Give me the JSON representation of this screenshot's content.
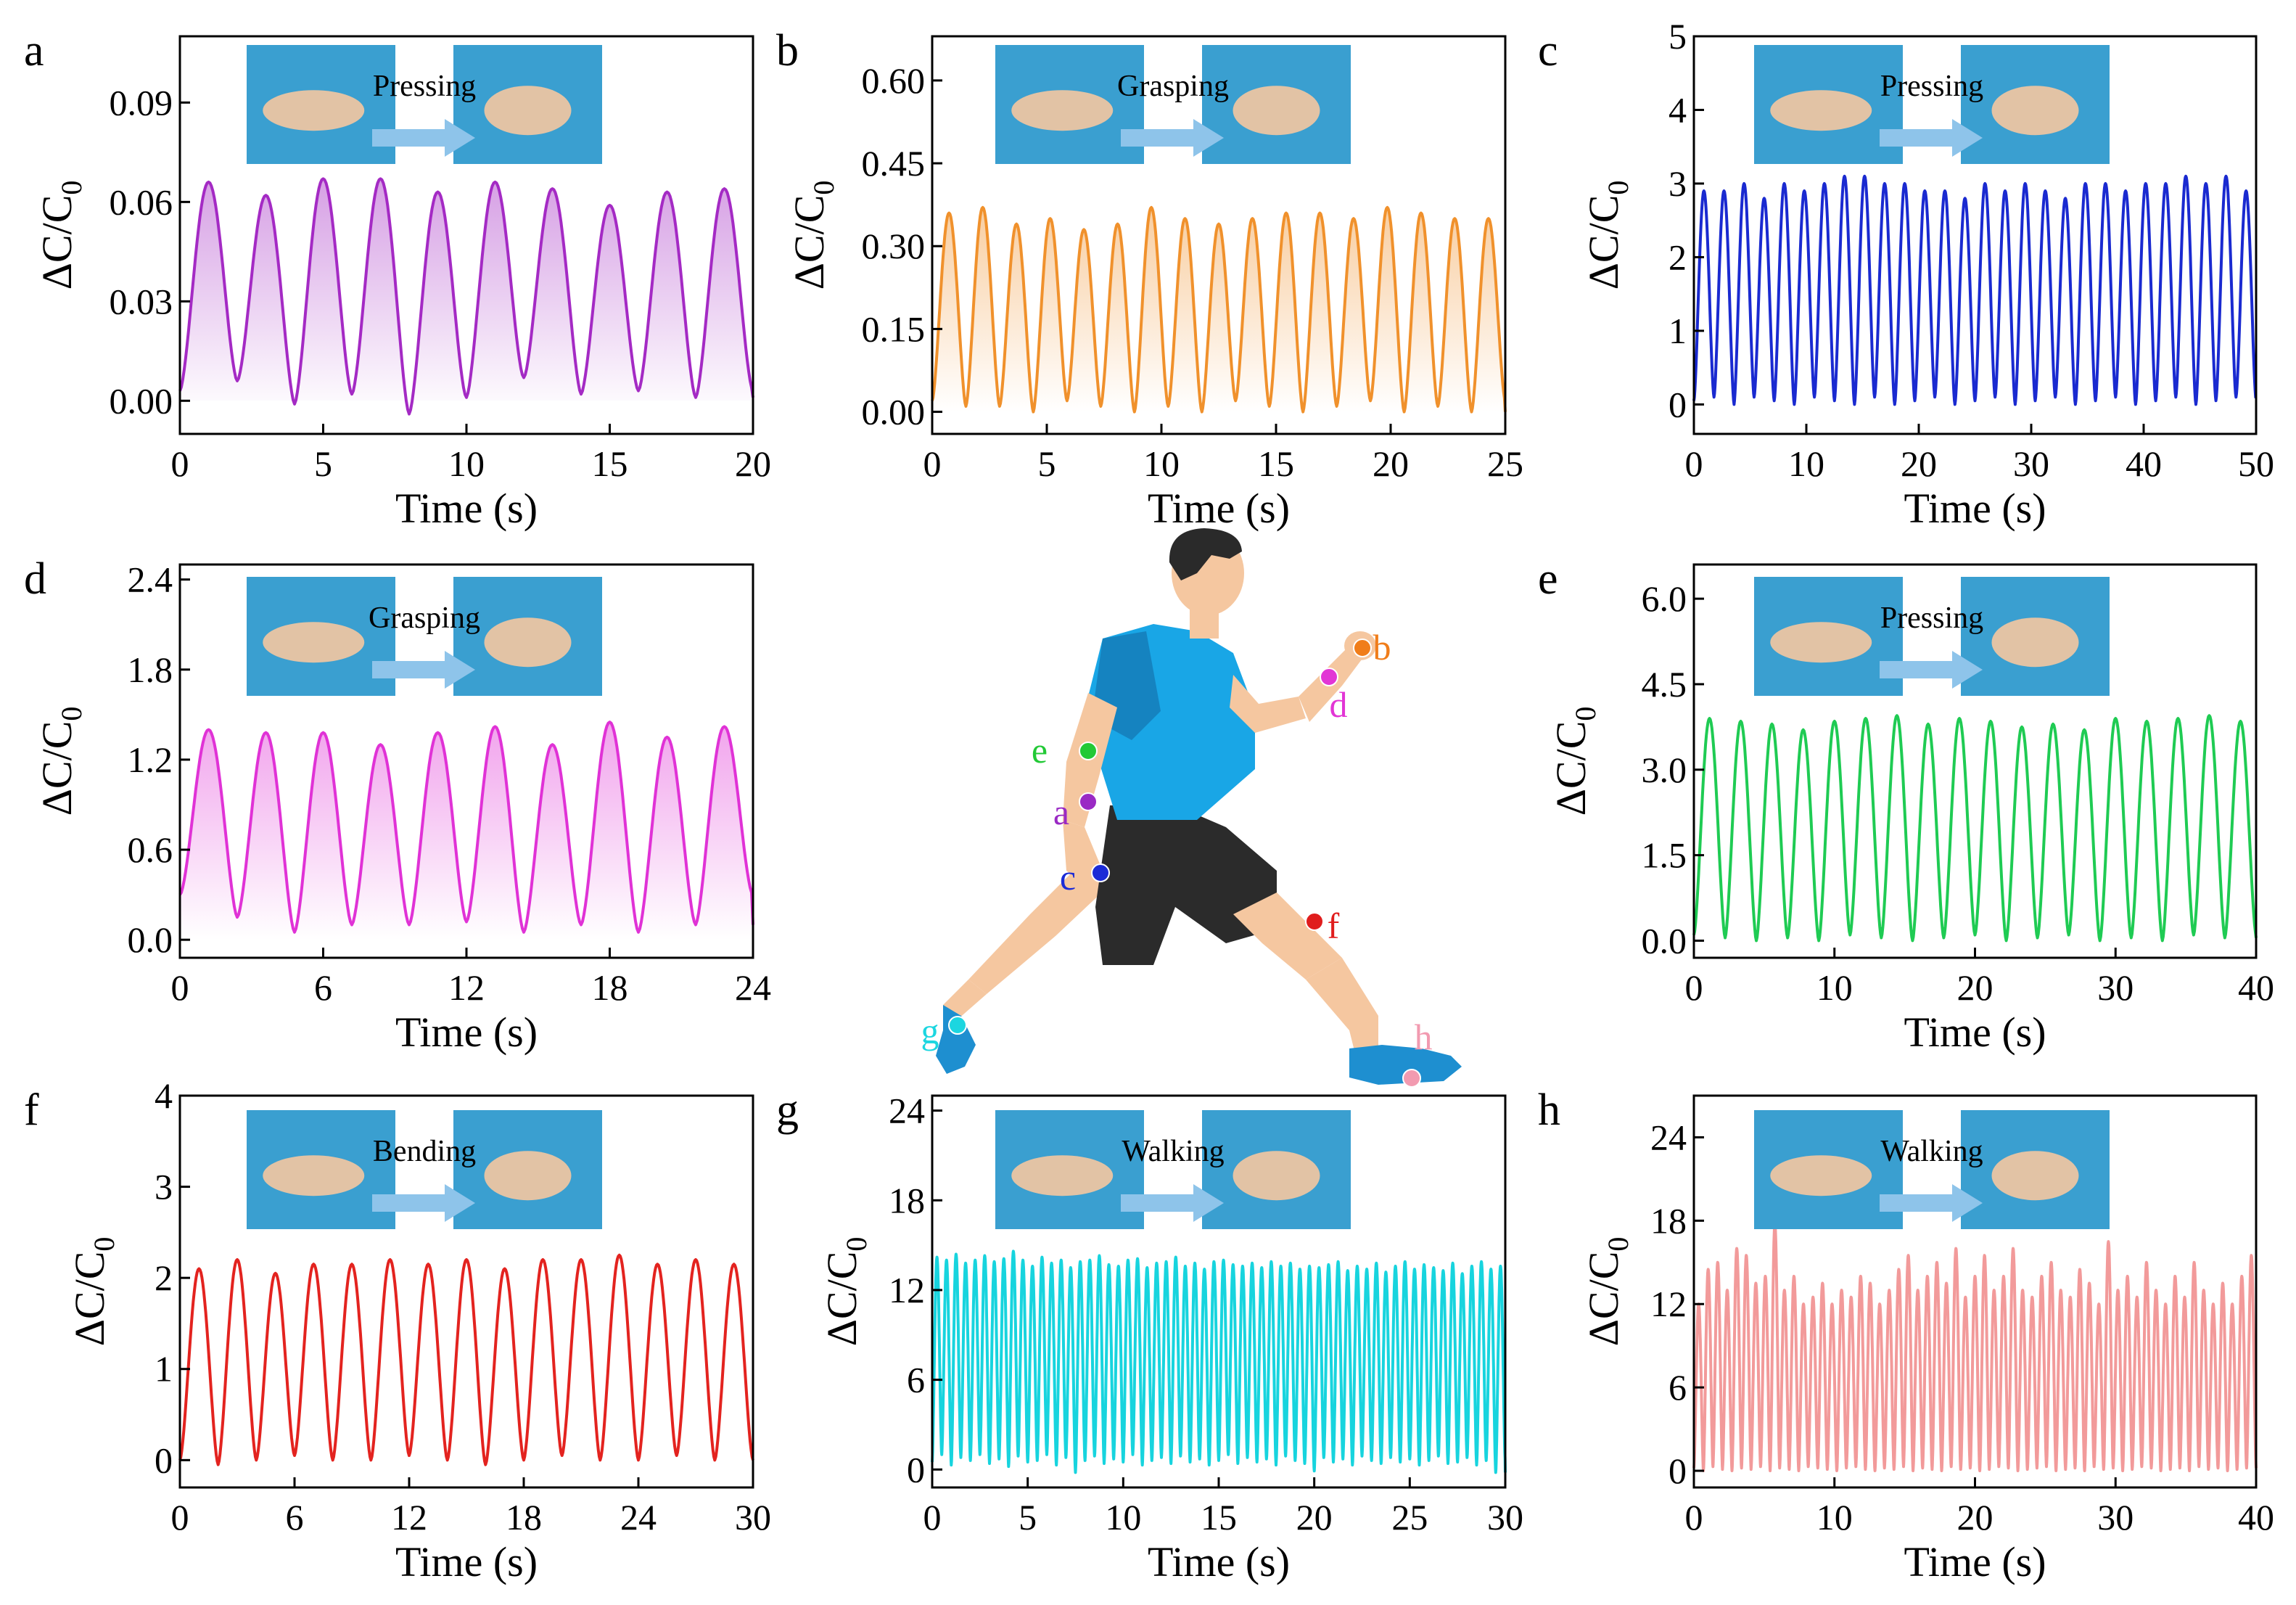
{
  "figure": {
    "ylabel_main": "ΔC/C",
    "ylabel_sub": "0"
  },
  "colors": {
    "arrow": "#8ec4ea",
    "photo_bg": "#3a9fd0",
    "skin": "#f5c7a0",
    "shirt": "#19a6e6",
    "shorts": "#2b2b2b",
    "hair": "#2a2a2a",
    "shoe": "#1e8fd0"
  },
  "chart_data": [
    {
      "id": "a",
      "type": "line",
      "panel_label": "a",
      "action": "Pressing",
      "xlabel": "Time (s)",
      "ylabel": "ΔC/C0",
      "xlim": [
        0,
        20
      ],
      "ylim": [
        -0.01,
        0.11
      ],
      "xticks": [
        0,
        5,
        10,
        15,
        20
      ],
      "yticks": [
        0.0,
        0.03,
        0.06,
        0.09
      ],
      "ydecimals": 2,
      "color": "#a42ac4",
      "fill": true,
      "peaks": [
        0.066,
        0.062,
        0.067,
        0.067,
        0.063,
        0.066,
        0.064,
        0.059,
        0.063,
        0.064
      ],
      "baselines": [
        0.003,
        0.006,
        -0.001,
        0.002,
        -0.004,
        0.001,
        0.007,
        0.002,
        0.003,
        0.001
      ]
    },
    {
      "id": "b",
      "type": "line",
      "panel_label": "b",
      "action": "Grasping",
      "xlabel": "Time (s)",
      "ylabel": "ΔC/C0",
      "xlim": [
        0,
        25
      ],
      "ylim": [
        -0.04,
        0.68
      ],
      "xticks": [
        0,
        5,
        10,
        15,
        20,
        25
      ],
      "yticks": [
        0.0,
        0.15,
        0.3,
        0.45,
        0.6
      ],
      "ydecimals": 2,
      "color": "#f0912c",
      "fill": true,
      "peaks": [
        0.36,
        0.37,
        0.34,
        0.35,
        0.33,
        0.34,
        0.37,
        0.35,
        0.34,
        0.35,
        0.36,
        0.36,
        0.35,
        0.37,
        0.36,
        0.35,
        0.35
      ],
      "baselines": [
        0.02,
        0.01,
        0.01,
        0.0,
        0.02,
        0.01,
        0.0,
        0.01,
        0.0,
        0.02,
        0.01,
        0.0,
        0.01,
        0.02,
        0.0,
        0.01,
        0.0
      ]
    },
    {
      "id": "c",
      "type": "line",
      "panel_label": "c",
      "action": "Pressing",
      "xlabel": "Time (s)",
      "ylabel": "ΔC/C0",
      "xlim": [
        0,
        50
      ],
      "ylim": [
        -0.4,
        5
      ],
      "xticks": [
        0,
        10,
        20,
        30,
        40,
        50
      ],
      "yticks": [
        0,
        1,
        2,
        3,
        4,
        5
      ],
      "ydecimals": 0,
      "color": "#1a2ad0",
      "fill": false,
      "peaks": [
        2.9,
        2.9,
        3.0,
        2.8,
        3.0,
        2.9,
        3.0,
        3.1,
        3.1,
        3.0,
        3.0,
        2.9,
        2.9,
        2.8,
        3.0,
        2.9,
        3.0,
        2.9,
        2.8,
        3.0,
        3.0,
        2.9,
        3.0,
        3.0,
        3.1,
        3.0,
        3.1,
        2.9
      ],
      "baselines": [
        0.05,
        0.1,
        0.0,
        0.1,
        0.05,
        0.0,
        0.1,
        0.05,
        0.0,
        0.1,
        0.0,
        0.05,
        0.1,
        0.0,
        0.05,
        0.1,
        0.0,
        0.05,
        0.1,
        0.0,
        0.05,
        0.1,
        0.0,
        0.05,
        0.1,
        0.0,
        0.05,
        0.1
      ]
    },
    {
      "id": "d",
      "type": "line",
      "panel_label": "d",
      "action": "Grasping",
      "xlabel": "Time (s)",
      "ylabel": "ΔC/C0",
      "xlim": [
        0,
        24
      ],
      "ylim": [
        -0.12,
        2.5
      ],
      "xticks": [
        0,
        6,
        12,
        18,
        24
      ],
      "yticks": [
        0.0,
        0.6,
        1.2,
        1.8,
        2.4
      ],
      "ydecimals": 1,
      "color": "#e032d6",
      "fill": true,
      "peaks": [
        1.4,
        1.38,
        1.38,
        1.3,
        1.38,
        1.42,
        1.3,
        1.45,
        1.35,
        1.42
      ],
      "baselines": [
        0.3,
        0.15,
        0.05,
        0.1,
        0.1,
        0.12,
        0.05,
        0.1,
        0.05,
        0.1
      ]
    },
    {
      "id": "e",
      "type": "line",
      "panel_label": "e",
      "action": "Pressing",
      "xlabel": "Time (s)",
      "ylabel": "ΔC/C0",
      "xlim": [
        0,
        40
      ],
      "ylim": [
        -0.3,
        6.6
      ],
      "xticks": [
        0,
        10,
        20,
        30,
        40
      ],
      "yticks": [
        0.0,
        1.5,
        3.0,
        4.5,
        6.0
      ],
      "ydecimals": 1,
      "color": "#1fcb53",
      "fill": false,
      "peaks": [
        3.9,
        3.85,
        3.8,
        3.7,
        3.85,
        3.9,
        3.95,
        3.8,
        3.9,
        3.85,
        3.75,
        3.8,
        3.7,
        3.9,
        3.85,
        3.9,
        3.95,
        3.85
      ],
      "baselines": [
        0.1,
        0.05,
        0.0,
        0.05,
        0.0,
        0.1,
        0.05,
        0.0,
        0.05,
        0.1,
        0.0,
        0.05,
        0.1,
        0.0,
        0.05,
        0.0,
        0.1,
        0.05
      ]
    },
    {
      "id": "f",
      "type": "line",
      "panel_label": "f",
      "action": "Bending",
      "xlabel": "Time (s)",
      "ylabel": "ΔC/C0",
      "xlim": [
        0,
        30
      ],
      "ylim": [
        -0.3,
        4
      ],
      "xticks": [
        0,
        6,
        12,
        18,
        24,
        30
      ],
      "yticks": [
        0,
        1,
        2,
        3,
        4
      ],
      "ydecimals": 0,
      "color": "#e3231f",
      "fill": false,
      "peaks": [
        2.1,
        2.2,
        2.05,
        2.15,
        2.15,
        2.2,
        2.15,
        2.2,
        2.1,
        2.2,
        2.2,
        2.25,
        2.15,
        2.2,
        2.15
      ],
      "baselines": [
        0.0,
        -0.05,
        0.0,
        0.05,
        0.0,
        0.0,
        0.05,
        0.0,
        -0.05,
        0.0,
        0.05,
        0.0,
        0.0,
        0.05,
        0.0
      ]
    },
    {
      "id": "g",
      "type": "line",
      "panel_label": "g",
      "action": "Walking",
      "xlabel": "Time (s)",
      "ylabel": "ΔC/C0",
      "xlim": [
        0,
        30
      ],
      "ylim": [
        -1.2,
        25
      ],
      "xticks": [
        0,
        5,
        10,
        15,
        20,
        25,
        30
      ],
      "yticks": [
        0,
        6,
        12,
        18,
        24
      ],
      "ydecimals": 0,
      "color": "#17d4de",
      "fill": false,
      "peaks": [
        14.2,
        14.0,
        14.4,
        13.8,
        14.0,
        14.3,
        13.9,
        14.1,
        14.6,
        14.0,
        13.6,
        14.2,
        13.8,
        14.0,
        13.5,
        13.9,
        14.0,
        14.3,
        13.7,
        13.6,
        14.0,
        14.1,
        13.5,
        13.8,
        13.9,
        14.2,
        13.6,
        13.8,
        13.4,
        13.9,
        14.0,
        13.7,
        13.6,
        13.8,
        13.5,
        13.9,
        13.6,
        13.8,
        13.4,
        13.6,
        13.5,
        13.7,
        13.9,
        13.3,
        13.6,
        13.4,
        13.8,
        13.2,
        13.6,
        13.9,
        13.4,
        13.7,
        13.5,
        13.3,
        13.8,
        13.1,
        13.6,
        13.9,
        13.4,
        13.6
      ],
      "baselines": [
        0.5,
        1.0,
        0.3,
        0.8,
        0.6,
        1.0,
        0.4,
        0.7,
        0.2,
        0.9,
        0.5,
        0.6,
        1.0,
        0.3,
        0.8,
        -0.2,
        0.6,
        0.9,
        0.4,
        0.7,
        0.5,
        1.0,
        0.3,
        0.6,
        0.8,
        0.4,
        0.9,
        0.5,
        0.7,
        0.3,
        0.6,
        1.0,
        0.4,
        0.8,
        0.5,
        0.7,
        0.3,
        0.9,
        0.6,
        0.4,
        -0.1,
        0.8,
        0.5,
        0.7,
        0.3,
        0.9,
        0.6,
        0.4,
        0.8,
        0.5,
        0.7,
        0.3,
        0.6,
        0.9,
        0.4,
        0.5,
        0.8,
        0.3,
        0.6,
        -0.2
      ]
    },
    {
      "id": "h",
      "type": "line",
      "panel_label": "h",
      "action": "Walking",
      "xlabel": "Time (s)",
      "ylabel": "ΔC/C0",
      "xlim": [
        0,
        40
      ],
      "ylim": [
        -1.2,
        27
      ],
      "xticks": [
        0,
        10,
        20,
        30,
        40
      ],
      "yticks": [
        0,
        6,
        12,
        18,
        24
      ],
      "ydecimals": 0,
      "color": "#f29a9a",
      "fill": false,
      "peaks": [
        12,
        14.5,
        15,
        13,
        16,
        15.5,
        13.5,
        14,
        17.8,
        13,
        14,
        12,
        12.5,
        13.5,
        12,
        13,
        12.5,
        14,
        13.5,
        12,
        13,
        14.5,
        15.5,
        13,
        14,
        15,
        13.5,
        16,
        12.5,
        14,
        15.5,
        13,
        14,
        16,
        13,
        12.5,
        14,
        15,
        13,
        12.5,
        14.5,
        13.5,
        12,
        16.5,
        13,
        14,
        12.5,
        15,
        13,
        12,
        14,
        12.5,
        15,
        13,
        12,
        13.5,
        12,
        14,
        15.5
      ],
      "baselines": [
        0.2,
        0.0,
        0.3,
        0.1,
        0.0,
        0.2,
        0.1,
        0.3,
        0.0,
        0.2,
        0.1,
        0.0,
        0.3,
        0.2,
        0.1,
        0.0,
        0.2,
        0.3,
        0.1,
        0.0,
        0.2,
        0.1,
        0.3,
        0.0,
        0.2,
        0.1,
        0.0,
        0.3,
        0.1,
        0.2,
        0.0,
        0.1,
        0.3,
        0.2,
        0.0,
        0.1,
        0.2,
        0.3,
        0.0,
        0.1,
        0.2,
        0.0,
        0.3,
        0.1,
        0.2,
        0.0,
        0.1,
        0.3,
        0.2,
        0.0,
        0.1,
        0.2,
        0.0,
        0.3,
        0.1,
        0.2,
        0.0,
        0.1,
        0.2
      ]
    }
  ],
  "illustration": {
    "markers": [
      {
        "id": "b",
        "label": "b",
        "color": "#f07d1a"
      },
      {
        "id": "d",
        "label": "d",
        "color": "#e235d5"
      },
      {
        "id": "e",
        "label": "e",
        "color": "#22c936"
      },
      {
        "id": "a",
        "label": "a",
        "color": "#9a2ac4"
      },
      {
        "id": "c",
        "label": "c",
        "color": "#1b2bd6"
      },
      {
        "id": "f",
        "label": "f",
        "color": "#e01d1d"
      },
      {
        "id": "g",
        "label": "g",
        "color": "#1cd6e0"
      },
      {
        "id": "h",
        "label": "h",
        "color": "#f29ab0"
      }
    ]
  }
}
